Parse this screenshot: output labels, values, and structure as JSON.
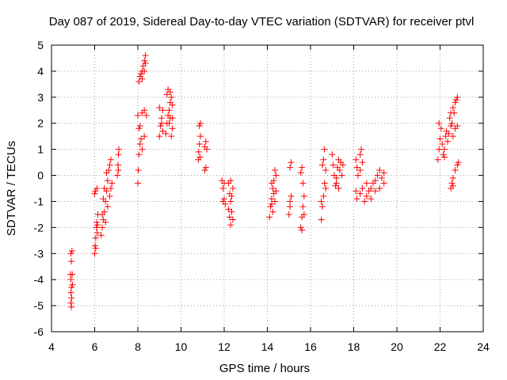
{
  "chart_data": {
    "type": "scatter",
    "title": "Day 087 of 2019, Sidereal Day-to-day VTEC variation (SDTVAR) for receiver ptvl",
    "xlabel": "GPS time / hours",
    "ylabel": "SDTVAR / TECUs",
    "xlim": [
      4,
      24
    ],
    "ylim": [
      -6,
      5
    ],
    "xticks": [
      4,
      6,
      8,
      10,
      12,
      14,
      16,
      18,
      20,
      22,
      24
    ],
    "yticks": [
      -6,
      -5,
      -4,
      -3,
      -2,
      -1,
      0,
      1,
      2,
      3,
      4,
      5
    ],
    "grid": true,
    "marker": "plus",
    "color": "#ff0000",
    "series": [
      {
        "name": "SDTVAR",
        "points": [
          [
            4.9,
            -3.0
          ],
          [
            4.92,
            -3.3
          ],
          [
            4.88,
            -3.8
          ],
          [
            4.9,
            -4.0
          ],
          [
            4.92,
            -4.3
          ],
          [
            4.9,
            -4.5
          ],
          [
            4.93,
            -4.7
          ],
          [
            4.9,
            -4.9
          ],
          [
            4.92,
            -5.05
          ],
          [
            4.95,
            -2.9
          ],
          [
            4.96,
            -3.8
          ],
          [
            4.97,
            -4.2
          ],
          [
            6.0,
            -3.0
          ],
          [
            6.02,
            -2.7
          ],
          [
            6.05,
            -2.4
          ],
          [
            6.08,
            -2.0
          ],
          [
            6.1,
            -1.8
          ],
          [
            6.12,
            -2.2
          ],
          [
            6.15,
            -1.5
          ],
          [
            6.0,
            -0.7
          ],
          [
            6.03,
            -0.6
          ],
          [
            6.1,
            -0.5
          ],
          [
            6.05,
            -2.8
          ],
          [
            6.13,
            -1.9
          ],
          [
            6.3,
            -2.3
          ],
          [
            6.35,
            -2.0
          ],
          [
            6.4,
            -1.7
          ],
          [
            6.45,
            -1.4
          ],
          [
            6.5,
            -1.0
          ],
          [
            6.55,
            -0.6
          ],
          [
            6.6,
            -0.2
          ],
          [
            6.65,
            0.2
          ],
          [
            6.7,
            0.4
          ],
          [
            6.75,
            0.6
          ],
          [
            6.8,
            -0.3
          ],
          [
            6.5,
            -1.8
          ],
          [
            6.6,
            -1.2
          ],
          [
            6.7,
            -0.8
          ],
          [
            6.4,
            -0.9
          ],
          [
            6.55,
            0.1
          ],
          [
            6.45,
            -0.5
          ],
          [
            6.35,
            -1.5
          ],
          [
            6.75,
            -0.5
          ],
          [
            7.05,
            0.0
          ],
          [
            7.08,
            0.4
          ],
          [
            7.1,
            0.8
          ],
          [
            7.12,
            1.0
          ],
          [
            7.1,
            0.2
          ],
          [
            8.0,
            -0.3
          ],
          [
            8.02,
            0.2
          ],
          [
            8.05,
            0.8
          ],
          [
            8.1,
            1.2
          ],
          [
            8.15,
            1.4
          ],
          [
            8.2,
            1.0
          ],
          [
            8.3,
            1.5
          ],
          [
            8.05,
            1.8
          ],
          [
            8.1,
            1.9
          ],
          [
            8.0,
            2.3
          ],
          [
            8.2,
            2.4
          ],
          [
            8.3,
            2.5
          ],
          [
            8.4,
            2.3
          ],
          [
            8.05,
            3.6
          ],
          [
            8.1,
            3.8
          ],
          [
            8.15,
            3.9
          ],
          [
            8.2,
            4.0
          ],
          [
            8.25,
            4.2
          ],
          [
            8.3,
            4.4
          ],
          [
            8.35,
            4.6
          ],
          [
            8.3,
            4.0
          ],
          [
            8.35,
            4.3
          ],
          [
            8.2,
            3.7
          ],
          [
            9.0,
            1.5
          ],
          [
            9.05,
            1.9
          ],
          [
            9.1,
            2.2
          ],
          [
            9.15,
            2.5
          ],
          [
            9.0,
            2.6
          ],
          [
            9.1,
            2.0
          ],
          [
            9.15,
            1.7
          ],
          [
            9.3,
            1.6
          ],
          [
            9.35,
            2.0
          ],
          [
            9.4,
            2.3
          ],
          [
            9.45,
            2.5
          ],
          [
            9.5,
            2.8
          ],
          [
            9.55,
            3.0
          ],
          [
            9.6,
            2.7
          ],
          [
            9.5,
            2.2
          ],
          [
            9.4,
            3.3
          ],
          [
            9.35,
            3.1
          ],
          [
            9.6,
            1.8
          ],
          [
            9.55,
            1.5
          ],
          [
            9.45,
            2.0
          ],
          [
            9.5,
            3.2
          ],
          [
            9.6,
            2.2
          ],
          [
            10.8,
            0.6
          ],
          [
            10.82,
            0.9
          ],
          [
            10.85,
            1.2
          ],
          [
            10.9,
            1.5
          ],
          [
            10.85,
            1.9
          ],
          [
            10.9,
            2.0
          ],
          [
            10.88,
            0.7
          ],
          [
            11.1,
            0.2
          ],
          [
            11.15,
            0.3
          ],
          [
            11.1,
            1.1
          ],
          [
            11.15,
            1.3
          ],
          [
            11.2,
            1.0
          ],
          [
            11.9,
            -0.2
          ],
          [
            11.95,
            -0.5
          ],
          [
            12.0,
            -0.9
          ],
          [
            12.05,
            -1.1
          ],
          [
            11.95,
            -1.0
          ],
          [
            12.0,
            -0.3
          ],
          [
            12.2,
            -0.3
          ],
          [
            12.25,
            -0.7
          ],
          [
            12.3,
            -1.0
          ],
          [
            12.35,
            -1.4
          ],
          [
            12.4,
            -1.7
          ],
          [
            12.3,
            -1.9
          ],
          [
            12.2,
            -1.3
          ],
          [
            12.4,
            -0.5
          ],
          [
            12.3,
            -0.2
          ],
          [
            12.25,
            -1.6
          ],
          [
            12.35,
            -0.8
          ],
          [
            14.1,
            -1.6
          ],
          [
            14.15,
            -1.2
          ],
          [
            14.2,
            -0.9
          ],
          [
            14.25,
            -0.5
          ],
          [
            14.3,
            -0.2
          ],
          [
            14.35,
            0.2
          ],
          [
            14.3,
            -0.7
          ],
          [
            14.25,
            -1.4
          ],
          [
            14.2,
            -0.3
          ],
          [
            14.35,
            -1.0
          ],
          [
            14.4,
            -0.6
          ],
          [
            14.2,
            -1.1
          ],
          [
            14.4,
            0.0
          ],
          [
            15.0,
            -1.5
          ],
          [
            15.05,
            -1.2
          ],
          [
            15.1,
            -0.8
          ],
          [
            15.05,
            0.3
          ],
          [
            15.1,
            0.5
          ],
          [
            15.05,
            -1.0
          ],
          [
            15.55,
            -2.0
          ],
          [
            15.6,
            -1.6
          ],
          [
            15.65,
            -1.2
          ],
          [
            15.7,
            -0.8
          ],
          [
            15.6,
            0.3
          ],
          [
            15.65,
            -0.3
          ],
          [
            15.55,
            0.1
          ],
          [
            15.7,
            -1.5
          ],
          [
            15.6,
            -2.1
          ],
          [
            16.5,
            -1.7
          ],
          [
            16.55,
            -1.2
          ],
          [
            16.6,
            -0.8
          ],
          [
            16.65,
            -0.3
          ],
          [
            16.7,
            0.2
          ],
          [
            16.6,
            0.6
          ],
          [
            16.65,
            1.0
          ],
          [
            16.55,
            0.4
          ],
          [
            16.5,
            -1.0
          ],
          [
            16.7,
            -0.5
          ],
          [
            17.0,
            0.8
          ],
          [
            17.05,
            0.4
          ],
          [
            17.1,
            0.0
          ],
          [
            17.15,
            -0.4
          ],
          [
            17.2,
            -0.1
          ],
          [
            17.25,
            0.3
          ],
          [
            17.3,
            0.6
          ],
          [
            17.35,
            0.2
          ],
          [
            17.4,
            0.5
          ],
          [
            17.5,
            0.4
          ],
          [
            17.45,
            0.0
          ],
          [
            17.3,
            -0.5
          ],
          [
            17.2,
            -0.3
          ],
          [
            18.1,
            0.6
          ],
          [
            18.15,
            0.3
          ],
          [
            18.2,
            0.0
          ],
          [
            18.3,
            0.8
          ],
          [
            18.35,
            1.0
          ],
          [
            18.4,
            0.5
          ],
          [
            18.3,
            0.2
          ],
          [
            18.1,
            -0.6
          ],
          [
            18.15,
            -0.9
          ],
          [
            18.3,
            -0.7
          ],
          [
            18.4,
            -0.5
          ],
          [
            18.5,
            -1.0
          ],
          [
            18.6,
            -0.8
          ],
          [
            18.7,
            -0.6
          ],
          [
            18.8,
            -0.5
          ],
          [
            18.9,
            -0.3
          ],
          [
            19.0,
            -0.2
          ],
          [
            19.1,
            0.0
          ],
          [
            19.2,
            0.2
          ],
          [
            19.3,
            -0.1
          ],
          [
            19.4,
            -0.3
          ],
          [
            19.0,
            -0.6
          ],
          [
            18.8,
            -0.9
          ],
          [
            19.2,
            -0.5
          ],
          [
            18.6,
            -0.3
          ],
          [
            19.4,
            0.1
          ],
          [
            21.9,
            0.6
          ],
          [
            21.95,
            1.0
          ],
          [
            22.0,
            1.4
          ],
          [
            22.05,
            1.8
          ],
          [
            21.95,
            2.0
          ],
          [
            22.1,
            1.2
          ],
          [
            22.15,
            0.8
          ],
          [
            22.2,
            1.0
          ],
          [
            22.25,
            1.5
          ],
          [
            22.3,
            1.7
          ],
          [
            22.35,
            1.3
          ],
          [
            22.4,
            1.6
          ],
          [
            22.45,
            2.2
          ],
          [
            22.5,
            1.9
          ],
          [
            22.55,
            2.0
          ],
          [
            22.6,
            1.5
          ],
          [
            22.7,
            1.8
          ],
          [
            22.8,
            1.9
          ],
          [
            22.5,
            2.4
          ],
          [
            22.6,
            2.6
          ],
          [
            22.7,
            2.8
          ],
          [
            22.8,
            3.0
          ],
          [
            22.75,
            2.9
          ],
          [
            22.65,
            2.4
          ],
          [
            22.2,
            0.7
          ],
          [
            22.5,
            -0.5
          ],
          [
            22.55,
            -0.3
          ],
          [
            22.6,
            -0.1
          ],
          [
            22.7,
            0.2
          ],
          [
            22.8,
            0.4
          ],
          [
            22.85,
            0.5
          ],
          [
            22.6,
            -0.4
          ]
        ]
      }
    ]
  }
}
